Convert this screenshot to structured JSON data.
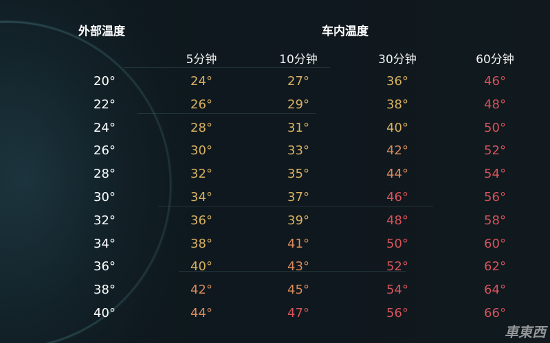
{
  "header": {
    "outside_label": "外部温度",
    "inside_label": "车内温度"
  },
  "columns": [
    "5分钟",
    "10分钟",
    "30分钟",
    "60分钟"
  ],
  "rows": [
    {
      "outside": "20°",
      "values": [
        "24°",
        "27°",
        "36°",
        "46°"
      ]
    },
    {
      "outside": "22°",
      "values": [
        "26°",
        "29°",
        "38°",
        "48°"
      ]
    },
    {
      "outside": "24°",
      "values": [
        "28°",
        "31°",
        "40°",
        "50°"
      ]
    },
    {
      "outside": "26°",
      "values": [
        "30°",
        "33°",
        "42°",
        "52°"
      ]
    },
    {
      "outside": "28°",
      "values": [
        "32°",
        "35°",
        "44°",
        "54°"
      ]
    },
    {
      "outside": "30°",
      "values": [
        "34°",
        "37°",
        "46°",
        "56°"
      ]
    },
    {
      "outside": "32°",
      "values": [
        "36°",
        "39°",
        "48°",
        "58°"
      ]
    },
    {
      "outside": "34°",
      "values": [
        "38°",
        "41°",
        "50°",
        "60°"
      ]
    },
    {
      "outside": "36°",
      "values": [
        "40°",
        "43°",
        "52°",
        "62°"
      ]
    },
    {
      "outside": "38°",
      "values": [
        "42°",
        "45°",
        "54°",
        "64°"
      ]
    },
    {
      "outside": "40°",
      "values": [
        "44°",
        "47°",
        "56°",
        "66°"
      ]
    }
  ],
  "colors": {
    "warm": "#d8b062",
    "hot": "#d98a5c",
    "very_hot": "#d6535b",
    "outside": "#ffffff"
  },
  "watermark": "車東西"
}
